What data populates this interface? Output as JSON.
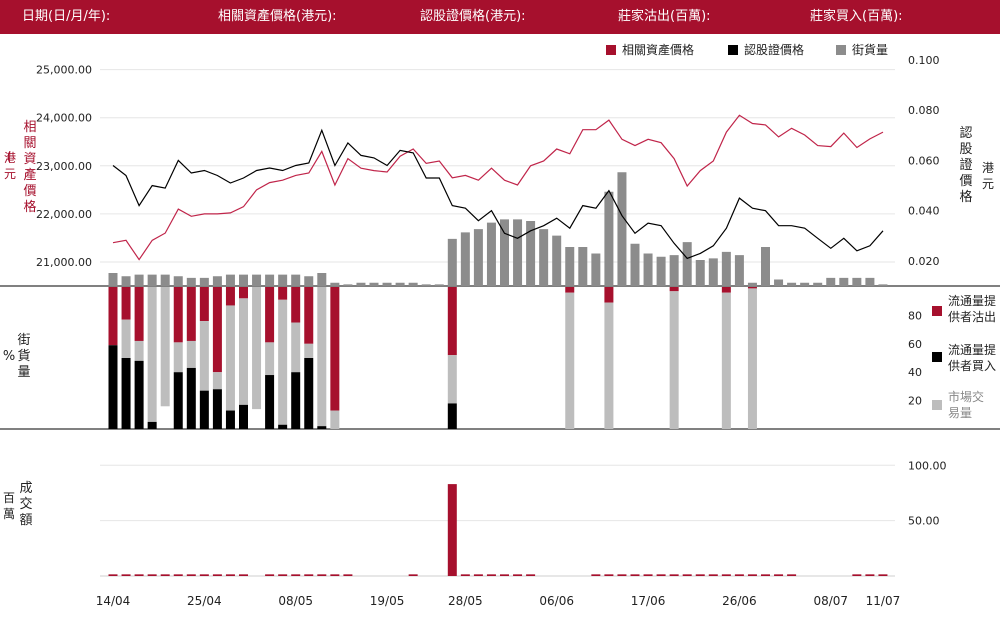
{
  "header": {
    "date_label": "日期(日/月/年):",
    "underlying_label": "相關資產價格(港元):",
    "warrant_label": "認股證價格(港元):",
    "mm_sell_label": "莊家沽出(百萬):",
    "mm_buy_label": "莊家買入(百萬):"
  },
  "legend_top": {
    "underlying": "相關資產價格",
    "warrant": "認股證價格",
    "outstanding": "街貨量"
  },
  "legend_mid": {
    "mm_sell": "流通量提供者沽出",
    "mm_buy": "流通量提供者買入",
    "market": "市場交易量"
  },
  "axis_labels": {
    "left_top": "相關資產價格",
    "left_top_unit": "港元",
    "right_top": "認股證價格",
    "right_top_unit": "港元",
    "left_mid": "街貨量",
    "left_mid_unit": "%",
    "left_bottom": "成交額",
    "left_bottom_unit": "百萬"
  },
  "colors": {
    "brand": "#a6102d",
    "underlying": "#c0254a",
    "warrant": "#000000",
    "outstanding": "#8c8c8c",
    "mm_sell": "#a6102d",
    "mm_buy": "#000000",
    "market": "#bdbdbd"
  },
  "chart_data": {
    "type": "line",
    "x_tick_labels": [
      "14/04",
      "25/04",
      "08/05",
      "19/05",
      "28/05",
      "06/06",
      "17/06",
      "26/06",
      "08/07",
      "11/07"
    ],
    "x_tick_index": [
      0,
      7,
      14,
      21,
      27,
      34,
      41,
      48,
      55,
      59
    ],
    "price_panel": {
      "left_axis_ticks": [
        "21,000.00",
        "22,000.00",
        "23,000.00",
        "24,000.00",
        "25,000.00"
      ],
      "left_range": [
        20500,
        25200
      ],
      "right_axis_ticks": [
        "0.020",
        "0.040",
        "0.060",
        "0.080",
        "0.100"
      ],
      "right_range": [
        0.01,
        0.1
      ],
      "underlying": [
        21400,
        21450,
        21050,
        21450,
        21600,
        22100,
        21950,
        22000,
        22000,
        22020,
        22150,
        22500,
        22650,
        22700,
        22800,
        22850,
        23300,
        22600,
        23150,
        22950,
        22900,
        22870,
        23200,
        23350,
        23050,
        23100,
        22750,
        22800,
        22700,
        22950,
        22700,
        22600,
        23000,
        23100,
        23350,
        23250,
        23750,
        23750,
        23950,
        23550,
        23420,
        23550,
        23480,
        23150,
        22580,
        22900,
        23100,
        23700,
        24050,
        23880,
        23850,
        23600,
        23780,
        23640,
        23420,
        23400,
        23680,
        23380,
        23560,
        23700
      ],
      "warrant": [
        0.058,
        0.054,
        0.042,
        0.05,
        0.049,
        0.06,
        0.055,
        0.056,
        0.054,
        0.051,
        0.053,
        0.056,
        0.057,
        0.056,
        0.058,
        0.059,
        0.072,
        0.058,
        0.067,
        0.062,
        0.061,
        0.058,
        0.064,
        0.063,
        0.053,
        0.053,
        0.042,
        0.041,
        0.036,
        0.04,
        0.031,
        0.029,
        0.032,
        0.034,
        0.037,
        0.033,
        0.042,
        0.041,
        0.048,
        0.038,
        0.031,
        0.035,
        0.034,
        0.027,
        0.021,
        0.023,
        0.026,
        0.033,
        0.045,
        0.041,
        0.04,
        0.034,
        0.034,
        0.033,
        0.029,
        0.025,
        0.029,
        0.024,
        0.026,
        0.032
      ],
      "outstanding_pct": [
        4.0,
        3.0,
        3.5,
        3.5,
        3.5,
        3.0,
        2.5,
        2.5,
        3.0,
        3.5,
        3.5,
        3.5,
        3.5,
        3.5,
        3.5,
        3.0,
        4.0,
        1.0,
        0.5,
        1.0,
        1.0,
        1.0,
        1.0,
        1.0,
        0.5,
        0.5,
        14.5,
        16.5,
        17.5,
        19.5,
        20.5,
        20.5,
        20.0,
        17.5,
        15.5,
        12.0,
        12.0,
        10.0,
        29.0,
        35.0,
        13.0,
        10.0,
        9.0,
        9.5,
        13.5,
        8.0,
        8.5,
        10.5,
        9.5,
        1.0,
        12.0,
        2.0,
        1.0,
        1.0,
        1.0,
        2.5,
        2.5,
        2.5,
        2.5,
        0.5
      ],
      "outstanding_scale_max": 40
    },
    "flow_panel": {
      "y_ticks": [
        "20",
        "40",
        "60",
        "80"
      ],
      "y_range": [
        0,
        100
      ],
      "mm_sell": [
        41,
        23,
        38,
        0,
        0,
        39,
        38,
        24,
        60,
        13,
        8,
        0,
        39,
        9,
        25,
        40,
        0,
        87,
        0,
        0,
        0,
        0,
        0,
        0,
        0,
        0,
        48,
        0,
        0,
        0,
        0,
        0,
        0,
        0,
        0,
        4,
        0,
        0,
        11,
        0,
        0,
        0,
        0,
        3,
        0,
        0,
        0,
        4,
        0,
        1,
        0,
        0,
        0,
        0,
        0,
        0,
        0,
        0,
        0,
        0
      ],
      "mm_buy": [
        59,
        50,
        48,
        5,
        0,
        40,
        43,
        27,
        28,
        13,
        17,
        0,
        38,
        3,
        40,
        50,
        2,
        0,
        0,
        0,
        0,
        0,
        0,
        0,
        0,
        0,
        18,
        0,
        0,
        0,
        0,
        0,
        0,
        0,
        0,
        0,
        0,
        0,
        0,
        0,
        0,
        0,
        0,
        0,
        0,
        0,
        0,
        0,
        0,
        0,
        0,
        0,
        0,
        0,
        0,
        0,
        0,
        0,
        0,
        0
      ],
      "market": [
        0,
        27,
        14,
        95,
        84,
        21,
        19,
        49,
        12,
        74,
        75,
        86,
        23,
        88,
        35,
        10,
        98,
        13,
        0,
        0,
        0,
        0,
        0,
        0,
        0,
        0,
        34,
        0,
        0,
        0,
        0,
        0,
        0,
        0,
        0,
        96,
        0,
        0,
        89,
        0,
        0,
        0,
        0,
        97,
        0,
        0,
        0,
        96,
        0,
        99,
        0,
        0,
        0,
        0,
        0,
        0,
        0,
        0,
        0,
        0
      ]
    },
    "turnover_panel": {
      "y_ticks": [
        "50.00",
        "100.00"
      ],
      "y_range": [
        0,
        112
      ],
      "turnover": [
        1.5,
        1.5,
        1.5,
        1.5,
        1.5,
        1.5,
        1.5,
        1.5,
        1.5,
        1.5,
        1.5,
        0,
        1.5,
        1.5,
        1.5,
        1.5,
        1.5,
        1.5,
        1.5,
        0,
        0,
        0,
        0,
        1.5,
        0,
        0,
        83,
        1.5,
        1.5,
        1.5,
        1.5,
        1.5,
        1.5,
        0,
        0,
        0,
        0,
        1.5,
        1.5,
        1.5,
        1.5,
        1.5,
        1.5,
        1.5,
        1.5,
        1.5,
        1.5,
        1.5,
        1.5,
        1.5,
        1.5,
        1.5,
        1.5,
        0,
        0,
        0,
        0,
        1.5,
        1.5,
        1.5
      ]
    }
  }
}
